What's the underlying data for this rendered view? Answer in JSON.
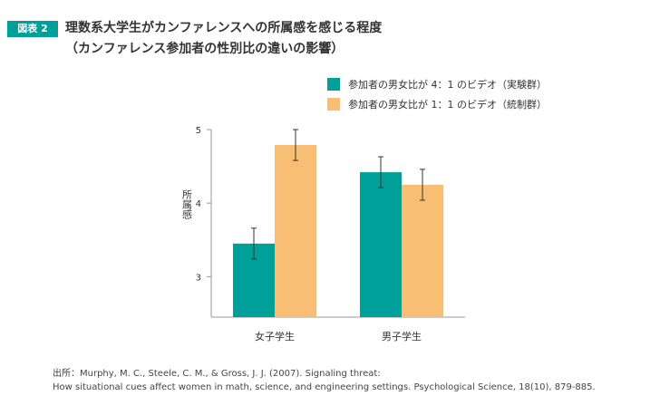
{
  "header": {
    "badge": "図表 2",
    "title": "理数系大学生がカンファレンスへの所属感を感じる程度",
    "subtitle": "（カンファレンス参加者の性別比の違いの影響）"
  },
  "colors": {
    "teal": "#00a09a",
    "orange": "#f7be74",
    "axis": "#999999",
    "errorbar": "#333333"
  },
  "chart_data": {
    "type": "bar",
    "categories": [
      "女子学生",
      "男子学生"
    ],
    "series": [
      {
        "name": "参加者の男女比が 4：1 のビデオ（実験群）",
        "color": "#00a09a",
        "values": [
          3.45,
          4.42
        ],
        "errors": [
          0.21,
          0.21
        ]
      },
      {
        "name": "参加者の男女比が 1：1 のビデオ（統制群）",
        "color": "#f7be74",
        "values": [
          4.79,
          4.25
        ],
        "errors": [
          0.21,
          0.21
        ]
      }
    ],
    "ylabel": "所属感",
    "yticks": [
      "3",
      "4",
      "5"
    ],
    "ylim": [
      2.45,
      5.0
    ],
    "grid": false,
    "legend": "top-right"
  },
  "source": {
    "line1": "出所：Murphy, M. C., Steele, C. M., & Gross, J. J. (2007). Signaling threat:",
    "line2": "How situational cues affect women in math, science, and engineering settings. Psychological Science, 18(10), 879-885."
  }
}
